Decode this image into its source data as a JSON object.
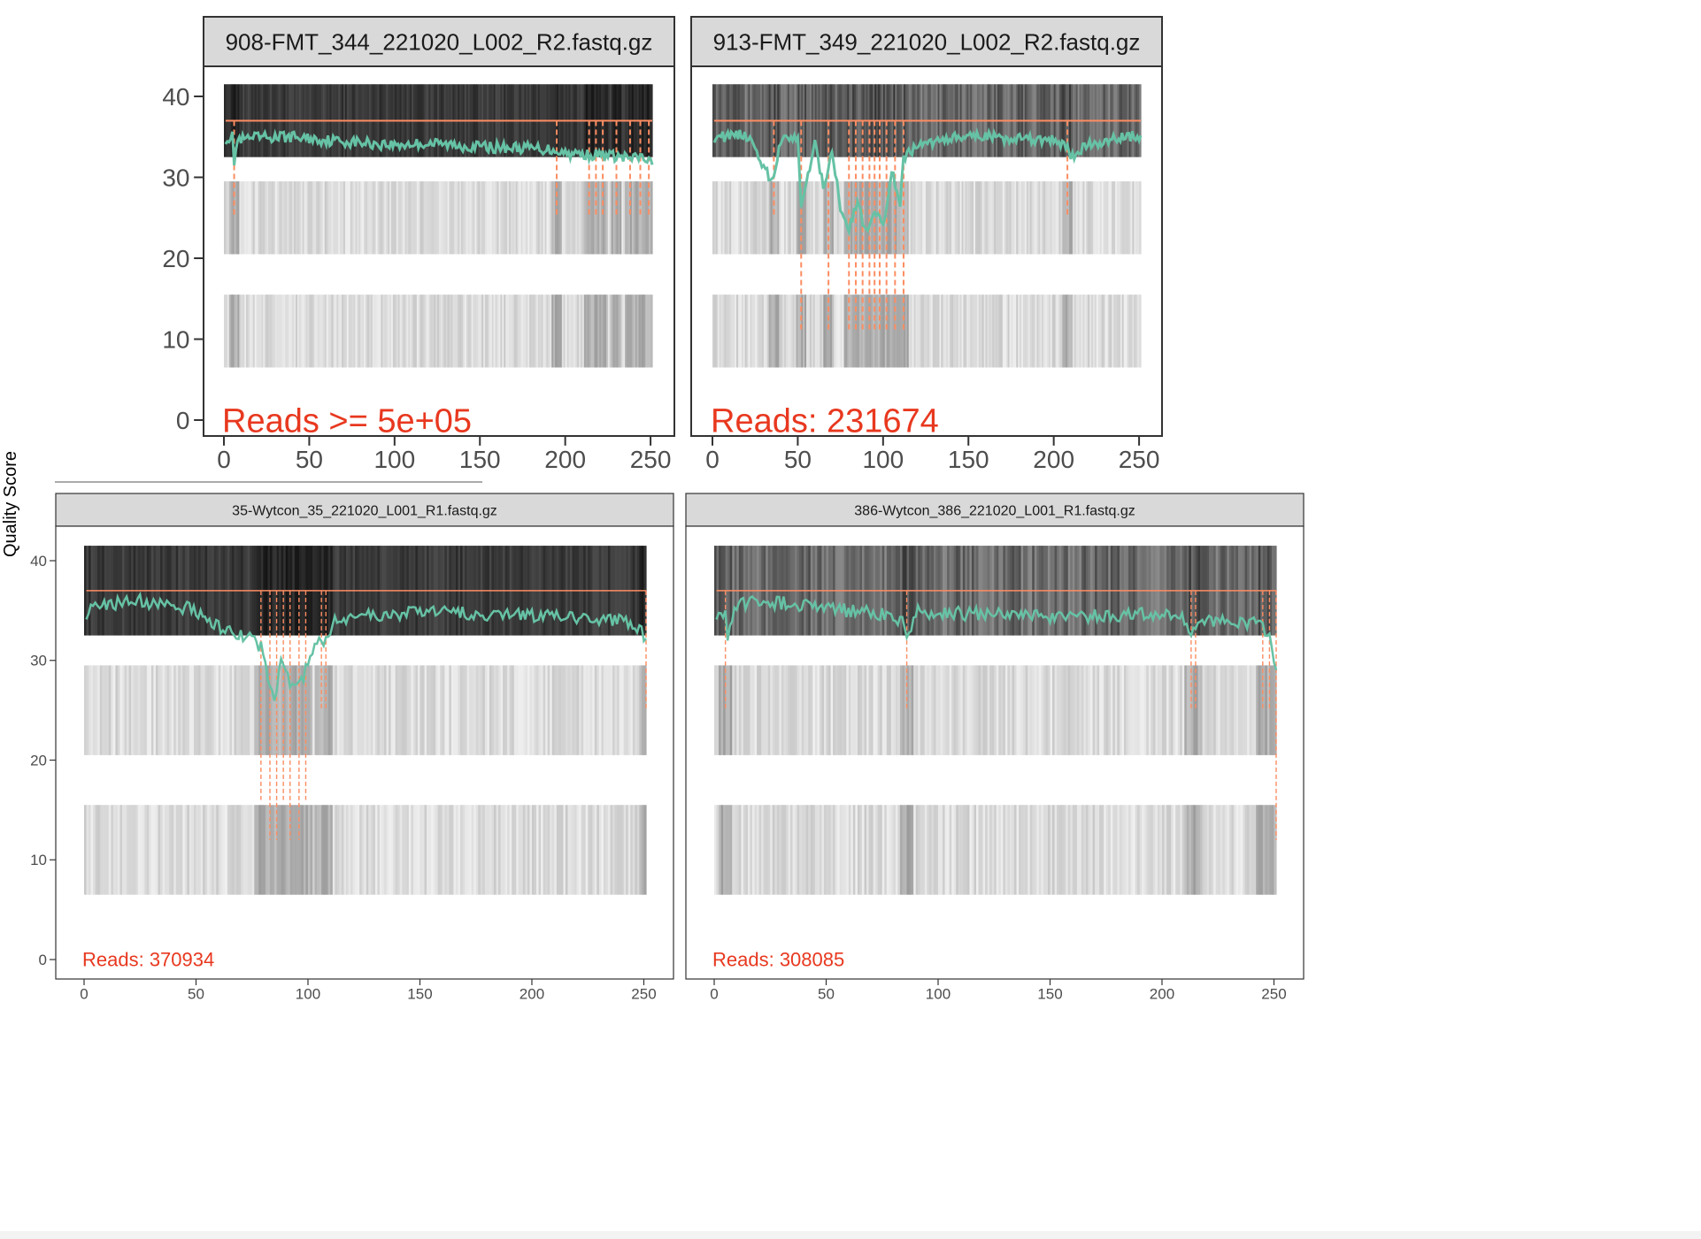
{
  "y_axis_title": "Quality Score",
  "colors": {
    "strip_fill": "#d9d9d9",
    "panel_border": "#333333",
    "mean_line": "#66c2a5",
    "quartile_line": "#fc8d62",
    "threshold_line": "#fc8d62",
    "reads_text": "#e8381f",
    "axis_text": "#4d4d4d"
  },
  "chart_data": [
    {
      "type": "heatmap",
      "title": "908-FMT_344_221020_L002_R2.fastq.gz",
      "reads_label": "Reads >=  5e+05",
      "xlim": [
        0,
        251
      ],
      "ylim": [
        0,
        40
      ],
      "x_ticks": [
        "0",
        "50",
        "100",
        "150",
        "200",
        "250"
      ],
      "y_ticks": [
        "0",
        "10",
        "20",
        "30",
        "40"
      ],
      "threshold": 37,
      "quality_bands": [
        {
          "range": [
            32.5,
            41.5
          ],
          "shade": "dark"
        },
        {
          "range": [
            20.5,
            29.5
          ],
          "shade": "light"
        },
        {
          "range": [
            6.5,
            15.5
          ],
          "shade": "light"
        }
      ],
      "mean_quality_keypoints": {
        "x": [
          1,
          5,
          6,
          8,
          20,
          40,
          60,
          80,
          100,
          120,
          140,
          160,
          180,
          195,
          200,
          215,
          225,
          240,
          245,
          251
        ],
        "y": [
          34.8,
          35.0,
          32.0,
          34.5,
          34.9,
          35.0,
          34.6,
          34.3,
          34.0,
          34.2,
          33.9,
          33.7,
          33.6,
          33.4,
          33.0,
          32.8,
          32.7,
          32.3,
          32.5,
          31.6
        ]
      },
      "quartile_dips": [
        [
          6,
          25
        ],
        [
          195,
          25
        ],
        [
          214,
          25
        ],
        [
          218,
          25
        ],
        [
          222,
          25
        ],
        [
          230,
          25
        ],
        [
          238,
          25
        ],
        [
          244,
          25
        ],
        [
          249,
          25
        ]
      ]
    },
    {
      "type": "heatmap",
      "title": "913-FMT_349_221020_L002_R2.fastq.gz",
      "reads_label": "Reads:  231674",
      "xlim": [
        0,
        251
      ],
      "ylim": [
        0,
        40
      ],
      "x_ticks": [
        "0",
        "50",
        "100",
        "150",
        "200",
        "250"
      ],
      "threshold": 37,
      "quality_bands": [
        {
          "range": [
            32.5,
            41.5
          ],
          "shade": "mid"
        },
        {
          "range": [
            20.5,
            29.5
          ],
          "shade": "light"
        },
        {
          "range": [
            6.5,
            15.5
          ],
          "shade": "light"
        }
      ],
      "mean_quality_keypoints": {
        "x": [
          1,
          20,
          35,
          40,
          50,
          52,
          60,
          65,
          70,
          75,
          80,
          85,
          90,
          95,
          100,
          105,
          110,
          112,
          115,
          120,
          140,
          160,
          180,
          200,
          208,
          210,
          220,
          240,
          251
        ],
        "y": [
          35.0,
          35.2,
          29.5,
          34.5,
          34.8,
          27.0,
          34.0,
          29.0,
          33.0,
          26.5,
          23.5,
          27.0,
          23.0,
          25.5,
          24.0,
          31.0,
          26.0,
          32.5,
          33.0,
          33.8,
          34.8,
          35.0,
          34.8,
          34.5,
          33.8,
          32.2,
          34.0,
          35.0,
          35.2
        ]
      },
      "quartile_dips": [
        [
          36,
          25
        ],
        [
          52,
          11
        ],
        [
          68,
          11
        ],
        [
          80,
          11
        ],
        [
          84,
          11
        ],
        [
          88,
          11
        ],
        [
          92,
          11
        ],
        [
          95,
          11
        ],
        [
          98,
          11
        ],
        [
          102,
          11
        ],
        [
          107,
          11
        ],
        [
          112,
          11
        ],
        [
          208,
          25
        ]
      ]
    },
    {
      "type": "heatmap",
      "title": "35-Wytcon_35_221020_L001_R1.fastq.gz",
      "reads_label": "Reads:  370934",
      "xlim": [
        0,
        251
      ],
      "ylim": [
        0,
        40
      ],
      "x_ticks": [
        "0",
        "50",
        "100",
        "150",
        "200",
        "250"
      ],
      "y_ticks": [
        "0",
        "10",
        "20",
        "30",
        "40"
      ],
      "threshold": 37,
      "quality_bands": [
        {
          "range": [
            32.5,
            41.5
          ],
          "shade": "dark"
        },
        {
          "range": [
            20.5,
            29.5
          ],
          "shade": "light"
        },
        {
          "range": [
            6.5,
            15.5
          ],
          "shade": "light"
        }
      ],
      "mean_quality_keypoints": {
        "x": [
          1,
          10,
          20,
          30,
          40,
          50,
          55,
          60,
          70,
          75,
          80,
          82,
          85,
          88,
          92,
          95,
          100,
          104,
          108,
          112,
          120,
          140,
          160,
          180,
          200,
          220,
          240,
          248,
          251
        ],
        "y": [
          34.8,
          35.5,
          36.2,
          35.8,
          35.5,
          35.0,
          34.0,
          33.5,
          32.5,
          32.5,
          31.0,
          28.5,
          26.0,
          30.0,
          28.0,
          27.0,
          29.5,
          31.5,
          32.0,
          34.0,
          34.5,
          34.6,
          34.8,
          34.7,
          34.5,
          34.4,
          34.0,
          33.0,
          32.2
        ]
      },
      "quartile_dips": [
        [
          79,
          16
        ],
        [
          83,
          12
        ],
        [
          86,
          12
        ],
        [
          89,
          16
        ],
        [
          92,
          12
        ],
        [
          96,
          12
        ],
        [
          99,
          16
        ],
        [
          106,
          25
        ],
        [
          108,
          25
        ],
        [
          251,
          25
        ]
      ]
    },
    {
      "type": "heatmap",
      "title": "386-Wytcon_386_221020_L001_R1.fastq.gz",
      "reads_label": "Reads:  308085",
      "xlim": [
        0,
        251
      ],
      "ylim": [
        0,
        40
      ],
      "x_ticks": [
        "0",
        "50",
        "100",
        "150",
        "200",
        "250"
      ],
      "threshold": 37,
      "quality_bands": [
        {
          "range": [
            32.5,
            41.5
          ],
          "shade": "mid"
        },
        {
          "range": [
            20.5,
            29.5
          ],
          "shade": "light"
        },
        {
          "range": [
            6.5,
            15.5
          ],
          "shade": "light"
        }
      ],
      "mean_quality_keypoints": {
        "x": [
          1,
          5,
          6,
          10,
          20,
          40,
          60,
          80,
          85,
          86,
          90,
          100,
          120,
          140,
          160,
          180,
          200,
          210,
          213,
          215,
          220,
          240,
          245,
          248,
          251
        ],
        "y": [
          34.8,
          35.0,
          32.0,
          35.5,
          36.0,
          35.5,
          35.0,
          34.6,
          33.5,
          32.0,
          35.0,
          34.8,
          34.6,
          34.5,
          34.4,
          34.5,
          34.6,
          34.0,
          32.0,
          33.5,
          34.0,
          33.8,
          33.5,
          32.5,
          29.0
        ]
      },
      "quartile_dips": [
        [
          5,
          25
        ],
        [
          86,
          25
        ],
        [
          213,
          25
        ],
        [
          215,
          25
        ],
        [
          245,
          25
        ],
        [
          248,
          25
        ],
        [
          251,
          12
        ]
      ]
    }
  ]
}
